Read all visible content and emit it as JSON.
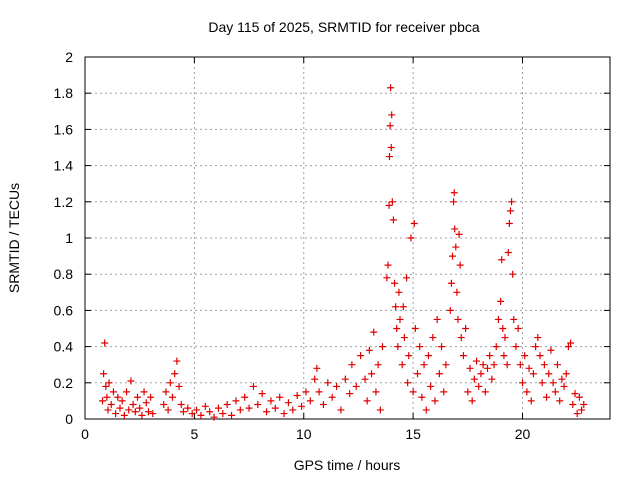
{
  "chart_data": {
    "type": "scatter",
    "title": "Day 115 of 2025, SRMTID for receiver pbca",
    "xlabel": "GPS time / hours",
    "ylabel": "SRMTID / TECUs",
    "xlim": [
      0,
      24
    ],
    "ylim": [
      0,
      2
    ],
    "x_ticks": [
      0,
      5,
      10,
      15,
      20
    ],
    "y_ticks": [
      0,
      0.2,
      0.4,
      0.6,
      0.8,
      1,
      1.2,
      1.4,
      1.6,
      1.8,
      2
    ],
    "x_tick_labels": [
      "0",
      "5",
      "10",
      "15",
      "20"
    ],
    "y_tick_labels": [
      "0",
      "0.2",
      "0.4",
      "0.6",
      "0.8",
      "1",
      "1.2",
      "1.4",
      "1.6",
      "1.8",
      "2"
    ],
    "grid": true,
    "marker": "+",
    "color": "#e00000",
    "series": [
      {
        "name": "SRMTID",
        "points": [
          [
            0.8,
            0.1
          ],
          [
            0.85,
            0.25
          ],
          [
            0.9,
            0.42
          ],
          [
            0.95,
            0.18
          ],
          [
            1.0,
            0.12
          ],
          [
            1.05,
            0.05
          ],
          [
            1.1,
            0.2
          ],
          [
            1.2,
            0.08
          ],
          [
            1.3,
            0.15
          ],
          [
            1.4,
            0.03
          ],
          [
            1.5,
            0.12
          ],
          [
            1.6,
            0.06
          ],
          [
            1.7,
            0.1
          ],
          [
            1.8,
            0.02
          ],
          [
            1.9,
            0.15
          ],
          [
            2.0,
            0.05
          ],
          [
            2.1,
            0.21
          ],
          [
            2.2,
            0.08
          ],
          [
            2.3,
            0.04
          ],
          [
            2.4,
            0.12
          ],
          [
            2.5,
            0.06
          ],
          [
            2.6,
            0.02
          ],
          [
            2.7,
            0.15
          ],
          [
            2.8,
            0.09
          ],
          [
            2.9,
            0.04
          ],
          [
            3.0,
            0.12
          ],
          [
            3.1,
            0.03
          ],
          [
            3.6,
            0.08
          ],
          [
            3.7,
            0.15
          ],
          [
            3.8,
            0.05
          ],
          [
            3.9,
            0.2
          ],
          [
            4.0,
            0.12
          ],
          [
            4.1,
            0.25
          ],
          [
            4.2,
            0.32
          ],
          [
            4.3,
            0.18
          ],
          [
            4.4,
            0.08
          ],
          [
            4.5,
            0.04
          ],
          [
            4.7,
            0.06
          ],
          [
            4.9,
            0.03
          ],
          [
            5.1,
            0.05
          ],
          [
            5.3,
            0.02
          ],
          [
            5.5,
            0.07
          ],
          [
            5.7,
            0.04
          ],
          [
            5.9,
            0.01
          ],
          [
            6.1,
            0.06
          ],
          [
            6.3,
            0.03
          ],
          [
            6.5,
            0.08
          ],
          [
            6.7,
            0.02
          ],
          [
            6.9,
            0.1
          ],
          [
            7.1,
            0.05
          ],
          [
            7.3,
            0.12
          ],
          [
            7.5,
            0.06
          ],
          [
            7.7,
            0.18
          ],
          [
            7.9,
            0.08
          ],
          [
            8.1,
            0.14
          ],
          [
            8.3,
            0.04
          ],
          [
            8.5,
            0.1
          ],
          [
            8.7,
            0.06
          ],
          [
            8.9,
            0.12
          ],
          [
            9.1,
            0.03
          ],
          [
            9.3,
            0.09
          ],
          [
            9.5,
            0.05
          ],
          [
            9.7,
            0.13
          ],
          [
            9.9,
            0.07
          ],
          [
            10.1,
            0.15
          ],
          [
            10.3,
            0.1
          ],
          [
            10.5,
            0.22
          ],
          [
            10.6,
            0.28
          ],
          [
            10.7,
            0.15
          ],
          [
            10.9,
            0.08
          ],
          [
            11.1,
            0.2
          ],
          [
            11.3,
            0.12
          ],
          [
            11.5,
            0.18
          ],
          [
            11.7,
            0.05
          ],
          [
            11.9,
            0.22
          ],
          [
            12.1,
            0.14
          ],
          [
            12.2,
            0.3
          ],
          [
            12.4,
            0.18
          ],
          [
            12.6,
            0.35
          ],
          [
            12.8,
            0.22
          ],
          [
            12.9,
            0.1
          ],
          [
            13.0,
            0.38
          ],
          [
            13.1,
            0.25
          ],
          [
            13.2,
            0.48
          ],
          [
            13.3,
            0.15
          ],
          [
            13.4,
            0.3
          ],
          [
            13.5,
            0.05
          ],
          [
            13.6,
            0.4
          ],
          [
            13.8,
            0.78
          ],
          [
            13.85,
            0.85
          ],
          [
            13.9,
            1.18
          ],
          [
            13.92,
            1.45
          ],
          [
            13.95,
            1.62
          ],
          [
            13.97,
            1.83
          ],
          [
            14.0,
            1.5
          ],
          [
            14.02,
            1.68
          ],
          [
            14.05,
            1.2
          ],
          [
            14.1,
            1.1
          ],
          [
            14.15,
            0.75
          ],
          [
            14.2,
            0.62
          ],
          [
            14.25,
            0.5
          ],
          [
            14.3,
            0.4
          ],
          [
            14.35,
            0.7
          ],
          [
            14.4,
            0.55
          ],
          [
            14.5,
            0.3
          ],
          [
            14.55,
            0.62
          ],
          [
            14.6,
            0.45
          ],
          [
            14.7,
            0.78
          ],
          [
            14.75,
            0.2
          ],
          [
            14.8,
            0.35
          ],
          [
            14.9,
            1.0
          ],
          [
            15.0,
            0.15
          ],
          [
            15.05,
            1.08
          ],
          [
            15.1,
            0.5
          ],
          [
            15.2,
            0.25
          ],
          [
            15.3,
            0.4
          ],
          [
            15.4,
            0.12
          ],
          [
            15.5,
            0.3
          ],
          [
            15.6,
            0.05
          ],
          [
            15.7,
            0.35
          ],
          [
            15.8,
            0.18
          ],
          [
            15.9,
            0.45
          ],
          [
            16.0,
            0.1
          ],
          [
            16.1,
            0.55
          ],
          [
            16.2,
            0.25
          ],
          [
            16.3,
            0.4
          ],
          [
            16.4,
            0.15
          ],
          [
            16.5,
            0.3
          ],
          [
            16.7,
            0.6
          ],
          [
            16.75,
            0.75
          ],
          [
            16.8,
            0.9
          ],
          [
            16.85,
            1.2
          ],
          [
            16.88,
            1.25
          ],
          [
            16.9,
            1.05
          ],
          [
            16.95,
            0.95
          ],
          [
            17.0,
            0.7
          ],
          [
            17.05,
            0.55
          ],
          [
            17.1,
            1.02
          ],
          [
            17.15,
            0.85
          ],
          [
            17.2,
            0.45
          ],
          [
            17.3,
            0.35
          ],
          [
            17.4,
            0.5
          ],
          [
            17.5,
            0.15
          ],
          [
            17.6,
            0.28
          ],
          [
            17.7,
            0.1
          ],
          [
            17.8,
            0.22
          ],
          [
            17.9,
            0.32
          ],
          [
            18.0,
            0.18
          ],
          [
            18.1,
            0.25
          ],
          [
            18.2,
            0.3
          ],
          [
            18.3,
            0.15
          ],
          [
            18.4,
            0.28
          ],
          [
            18.5,
            0.35
          ],
          [
            18.6,
            0.22
          ],
          [
            18.7,
            0.3
          ],
          [
            18.8,
            0.4
          ],
          [
            18.9,
            0.55
          ],
          [
            19.0,
            0.65
          ],
          [
            19.05,
            0.88
          ],
          [
            19.1,
            0.5
          ],
          [
            19.15,
            0.35
          ],
          [
            19.2,
            0.45
          ],
          [
            19.3,
            0.3
          ],
          [
            19.35,
            0.92
          ],
          [
            19.4,
            1.08
          ],
          [
            19.45,
            1.15
          ],
          [
            19.5,
            1.2
          ],
          [
            19.55,
            0.8
          ],
          [
            19.6,
            0.55
          ],
          [
            19.7,
            0.4
          ],
          [
            19.8,
            0.5
          ],
          [
            19.9,
            0.3
          ],
          [
            20.0,
            0.2
          ],
          [
            20.1,
            0.35
          ],
          [
            20.2,
            0.15
          ],
          [
            20.3,
            0.28
          ],
          [
            20.4,
            0.1
          ],
          [
            20.5,
            0.25
          ],
          [
            20.6,
            0.4
          ],
          [
            20.7,
            0.45
          ],
          [
            20.8,
            0.35
          ],
          [
            20.9,
            0.2
          ],
          [
            21.0,
            0.3
          ],
          [
            21.1,
            0.12
          ],
          [
            21.2,
            0.25
          ],
          [
            21.3,
            0.38
          ],
          [
            21.4,
            0.2
          ],
          [
            21.5,
            0.15
          ],
          [
            21.6,
            0.3
          ],
          [
            21.7,
            0.1
          ],
          [
            21.8,
            0.22
          ],
          [
            21.9,
            0.18
          ],
          [
            22.0,
            0.25
          ],
          [
            22.1,
            0.4
          ],
          [
            22.2,
            0.42
          ],
          [
            22.3,
            0.08
          ],
          [
            22.4,
            0.14
          ],
          [
            22.5,
            0.03
          ],
          [
            22.6,
            0.12
          ],
          [
            22.7,
            0.05
          ],
          [
            22.8,
            0.08
          ]
        ]
      }
    ]
  }
}
